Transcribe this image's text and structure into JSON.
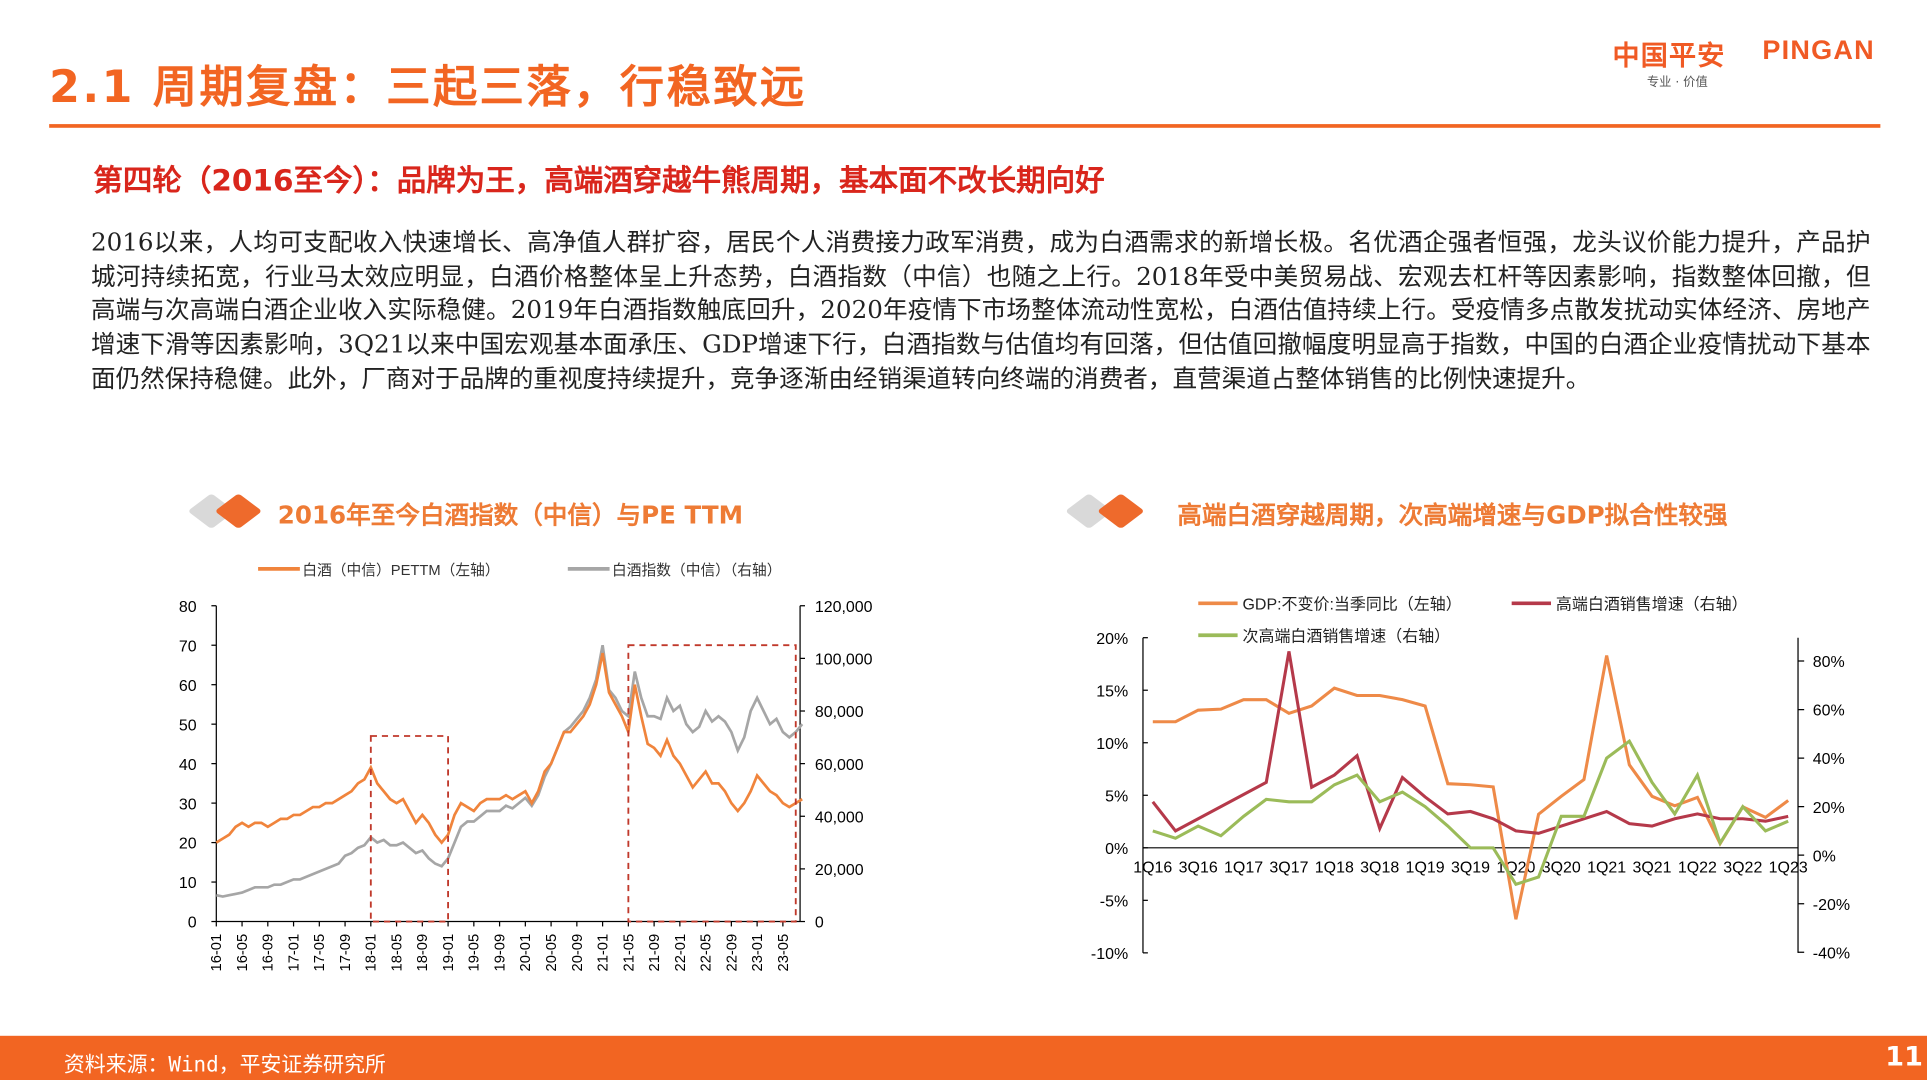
{
  "header": {
    "title": "2.1 周期复盘：三起三落，行稳致远",
    "logo": {
      "cn": "中国平安",
      "en": "PINGAN",
      "tagline": "专业 · 价值"
    }
  },
  "subtitle": "第四轮（2016至今）：品牌为王，高端酒穿越牛熊周期，基本面不改长期向好",
  "body_text": "2016以来，人均可支配收入快速增长、高净值人群扩容，居民个人消费接力政军消费，成为白酒需求的新增长极。名优酒企强者恒强，龙头议价能力提升，产品护城河持续拓宽，行业马太效应明显，白酒价格整体呈上升态势，白酒指数（中信）也随之上行。2018年受中美贸易战、宏观去杠杆等因素影响，指数整体回撤，但高端与次高端白酒企业收入实际稳健。2019年白酒指数触底回升，2020年疫情下市场整体流动性宽松，白酒估值持续上行。受疫情多点散发扰动实体经济、房地产增速下滑等因素影响，3Q21以来中国宏观基本面承压、GDP增速下行，白酒指数与估值均有回落，但估值回撤幅度明显高于指数，中国的白酒企业疫情扰动下基本面仍然保持稳健。此外，厂商对于品牌的重视度持续提升，竞争逐渐由经销渠道转向终端的消费者，直营渠道占整体销售的比例快速提升。",
  "footer": {
    "source": "资料来源：Wind，平安证券研究所",
    "page": "11"
  },
  "colors": {
    "brand": "#f26522",
    "pe": "#f0843c",
    "index": "#a6a6a6",
    "gdp": "#ee8a48",
    "high_end": "#b5394a",
    "sub_high_end": "#9bbb59",
    "annotation": "#c0392b"
  },
  "chart_data": [
    {
      "type": "line",
      "title": "2016年至今白酒指数（中信）与PE TTM",
      "legend_placement": "top",
      "grid": false,
      "x": [
        "2016-01",
        "2016-02",
        "2016-03",
        "2016-04",
        "2016-05",
        "2016-06",
        "2016-07",
        "2016-08",
        "2016-09",
        "2016-10",
        "2016-11",
        "2016-12",
        "2017-01",
        "2017-02",
        "2017-03",
        "2017-04",
        "2017-05",
        "2017-06",
        "2017-07",
        "2017-08",
        "2017-09",
        "2017-10",
        "2017-11",
        "2017-12",
        "2018-01",
        "2018-02",
        "2018-03",
        "2018-04",
        "2018-05",
        "2018-06",
        "2018-07",
        "2018-08",
        "2018-09",
        "2018-10",
        "2018-11",
        "2018-12",
        "2019-01",
        "2019-02",
        "2019-03",
        "2019-04",
        "2019-05",
        "2019-06",
        "2019-07",
        "2019-08",
        "2019-09",
        "2019-10",
        "2019-11",
        "2019-12",
        "2020-01",
        "2020-02",
        "2020-03",
        "2020-04",
        "2020-05",
        "2020-06",
        "2020-07",
        "2020-08",
        "2020-09",
        "2020-10",
        "2020-11",
        "2020-12",
        "2021-01",
        "2021-02",
        "2021-03",
        "2021-04",
        "2021-05",
        "2021-06",
        "2021-07",
        "2021-08",
        "2021-09",
        "2021-10",
        "2021-11",
        "2021-12",
        "2022-01",
        "2022-02",
        "2022-03",
        "2022-04",
        "2022-05",
        "2022-06",
        "2022-07",
        "2022-08",
        "2022-09",
        "2022-10",
        "2022-11",
        "2022-12",
        "2023-01",
        "2023-02",
        "2023-03",
        "2023-04",
        "2023-05",
        "2023-06",
        "2023-07",
        "2023-08"
      ],
      "xticks": [
        "16-01",
        "16-05",
        "16-09",
        "17-01",
        "17-05",
        "17-09",
        "18-01",
        "18-05",
        "18-09",
        "19-01",
        "19-05",
        "19-09",
        "20-01",
        "20-05",
        "20-09",
        "21-01",
        "21-05",
        "21-09",
        "22-01",
        "22-05",
        "22-09",
        "23-01",
        "23-05"
      ],
      "y_left": {
        "ticks": [
          "80",
          "70",
          "60",
          "50",
          "40",
          "30",
          "20",
          "10",
          "0"
        ],
        "range": [
          0,
          80
        ]
      },
      "y_right": {
        "ticks": [
          "120,000",
          "100,000",
          "80,000",
          "60,000",
          "40,000",
          "20,000",
          "0"
        ],
        "range": [
          0,
          120000
        ]
      },
      "series": [
        {
          "name": "白酒（中信）PETTM（左轴）",
          "axis": "left",
          "values": [
            20,
            21,
            22,
            24,
            25,
            24,
            25,
            25,
            24,
            25,
            26,
            26,
            27,
            27,
            28,
            29,
            29,
            30,
            30,
            31,
            32,
            33,
            35,
            36,
            39,
            35,
            33,
            31,
            30,
            31,
            28,
            25,
            27,
            25,
            22,
            20,
            22,
            27,
            30,
            29,
            28,
            30,
            31,
            31,
            31,
            32,
            31,
            32,
            33,
            30,
            33,
            38,
            40,
            44,
            48,
            48,
            50,
            52,
            55,
            60,
            68,
            58,
            55,
            52,
            48,
            60,
            52,
            45,
            44,
            42,
            46,
            42,
            40,
            37,
            34,
            36,
            38,
            35,
            35,
            33,
            30,
            28,
            30,
            33,
            37,
            35,
            33,
            32,
            30,
            29,
            30,
            31
          ]
        },
        {
          "name": "白酒指数（中信）（右轴）",
          "axis": "right",
          "values": [
            10000,
            9500,
            10000,
            10500,
            11000,
            12000,
            13000,
            13000,
            13000,
            14000,
            14000,
            15000,
            16000,
            16000,
            17000,
            18000,
            19000,
            20000,
            21000,
            22000,
            25000,
            26000,
            28000,
            29000,
            32000,
            30000,
            31000,
            29000,
            29000,
            30000,
            28000,
            26000,
            27000,
            24000,
            22000,
            21000,
            24000,
            30000,
            36000,
            38000,
            38000,
            40000,
            42000,
            42000,
            42000,
            44000,
            43000,
            45000,
            47000,
            44000,
            48000,
            55000,
            60000,
            66000,
            72000,
            74000,
            77000,
            80000,
            85000,
            92000,
            105000,
            88000,
            85000,
            80000,
            78000,
            95000,
            85000,
            78000,
            78000,
            77000,
            85000,
            80000,
            82000,
            75000,
            72000,
            74000,
            80000,
            76000,
            78000,
            76000,
            72000,
            65000,
            70000,
            80000,
            85000,
            80000,
            75000,
            77000,
            72000,
            70000,
            72000,
            75000
          ]
        }
      ],
      "annotations": [
        {
          "from": "2018-01",
          "to": "2019-01",
          "pe_top": 47
        },
        {
          "from": "2021-05",
          "to": "2023-07",
          "pe_top": 70
        }
      ]
    },
    {
      "type": "line",
      "title": "高端白酒穿越周期，次高端增速与GDP拟合性较强",
      "legend_placement": "top",
      "grid": false,
      "categories": [
        "1Q16",
        "2Q16",
        "3Q16",
        "4Q16",
        "1Q17",
        "2Q17",
        "3Q17",
        "4Q17",
        "1Q18",
        "2Q18",
        "3Q18",
        "4Q18",
        "1Q19",
        "2Q19",
        "3Q19",
        "4Q19",
        "1Q20",
        "2Q20",
        "3Q20",
        "4Q20",
        "1Q21",
        "2Q21",
        "3Q21",
        "4Q21",
        "1Q22",
        "2Q22",
        "3Q22",
        "4Q22",
        "1Q23"
      ],
      "xticks": [
        "1Q16",
        "3Q16",
        "1Q17",
        "3Q17",
        "1Q18",
        "3Q18",
        "1Q19",
        "3Q19",
        "1Q20",
        "3Q20",
        "1Q21",
        "3Q21",
        "1Q22",
        "3Q22",
        "1Q23"
      ],
      "y_left": {
        "ticks": [
          "20%",
          "15%",
          "10%",
          "5%",
          "0%",
          "-5%",
          "-10%"
        ],
        "range": [
          -10,
          20
        ]
      },
      "y_right": {
        "ticks": [
          "80%",
          "60%",
          "40%",
          "20%",
          "0%",
          "-20%",
          "-40%"
        ],
        "range": [
          -40,
          80
        ]
      },
      "series": [
        {
          "name": "GDP:不变价:当季同比（左轴）",
          "axis": "left",
          "values": [
            12,
            12,
            13.1,
            13.2,
            14.1,
            14.1,
            12.8,
            13.5,
            15.2,
            14.5,
            14.5,
            14.1,
            13.5,
            6.1,
            6.0,
            5.8,
            -6.8,
            3.2,
            4.9,
            6.5,
            18.3,
            7.9,
            4.9,
            4.0,
            4.8,
            0.4,
            3.9,
            2.9,
            4.5
          ]
        },
        {
          "name": "高端白酒销售增速（右轴）",
          "axis": "right",
          "values": [
            22,
            10,
            15,
            20,
            25,
            30,
            84,
            28,
            33,
            41,
            11,
            32,
            24,
            17,
            18,
            15,
            10,
            9,
            12,
            15,
            18,
            13,
            12,
            15,
            17,
            15,
            15,
            14,
            16
          ]
        },
        {
          "name": "次高端白酒销售增速（右轴）",
          "axis": "right",
          "values": [
            10,
            7,
            12,
            8,
            16,
            23,
            22,
            22,
            29,
            33,
            22,
            26,
            20,
            12,
            3,
            3,
            -12,
            -9,
            16,
            16,
            40,
            47,
            30,
            17,
            33,
            5,
            20,
            10,
            14
          ]
        }
      ]
    }
  ]
}
